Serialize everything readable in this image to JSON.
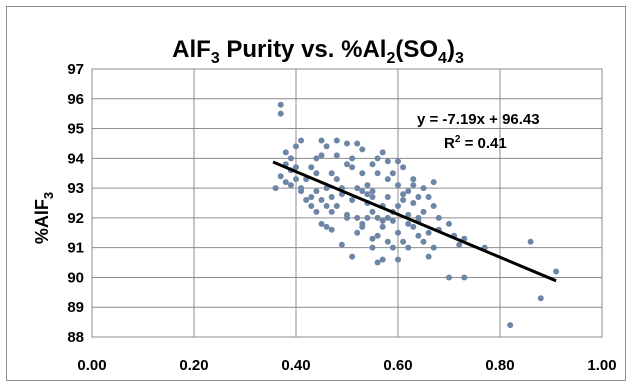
{
  "chart_data": {
    "type": "scatter",
    "title": {
      "parts": [
        {
          "text": "AlF",
          "shift": "none"
        },
        {
          "text": "3",
          "shift": "sub"
        },
        {
          "text": " Purity vs. %Al",
          "shift": "none"
        },
        {
          "text": "2",
          "shift": "sub"
        },
        {
          "text": "(SO",
          "shift": "none"
        },
        {
          "text": "4",
          "shift": "sub"
        },
        {
          "text": ")",
          "shift": "none"
        },
        {
          "text": "3",
          "shift": "sub"
        }
      ]
    },
    "ylabel": {
      "parts": [
        {
          "text": "%AlF",
          "shift": "none"
        },
        {
          "text": "3",
          "shift": "sub"
        }
      ]
    },
    "xlabel": "",
    "xlim": [
      0.0,
      1.0
    ],
    "ylim": [
      88,
      97
    ],
    "xticks": [
      "0.00",
      "0.20",
      "0.40",
      "0.60",
      "0.80",
      "1.00"
    ],
    "yticks": [
      "88",
      "89",
      "90",
      "91",
      "92",
      "93",
      "94",
      "95",
      "96",
      "97"
    ],
    "grid": "y-major",
    "marker_color": "#6e86a6",
    "trendline_color": "#000000",
    "trendline": {
      "slope": -7.19,
      "intercept": 96.43,
      "x_range": [
        0.355,
        0.91
      ],
      "equation": "y = -7.19x + 96.43",
      "r2_prefix": "R",
      "r2_sup": "2",
      "r2_rest": " = 0.41"
    },
    "points": [
      [
        0.37,
        95.8
      ],
      [
        0.37,
        95.5
      ],
      [
        0.36,
        93.0
      ],
      [
        0.37,
        93.4
      ],
      [
        0.38,
        93.8
      ],
      [
        0.38,
        94.2
      ],
      [
        0.38,
        93.2
      ],
      [
        0.39,
        94.0
      ],
      [
        0.39,
        93.6
      ],
      [
        0.39,
        93.1
      ],
      [
        0.4,
        94.4
      ],
      [
        0.4,
        93.7
      ],
      [
        0.4,
        93.3
      ],
      [
        0.41,
        94.6
      ],
      [
        0.41,
        92.9
      ],
      [
        0.41,
        93.0
      ],
      [
        0.42,
        92.6
      ],
      [
        0.42,
        93.3
      ],
      [
        0.43,
        93.7
      ],
      [
        0.43,
        92.7
      ],
      [
        0.43,
        92.4
      ],
      [
        0.44,
        94.0
      ],
      [
        0.44,
        92.2
      ],
      [
        0.44,
        93.5
      ],
      [
        0.45,
        94.6
      ],
      [
        0.45,
        94.1
      ],
      [
        0.45,
        92.6
      ],
      [
        0.45,
        91.8
      ],
      [
        0.46,
        94.4
      ],
      [
        0.46,
        93.0
      ],
      [
        0.46,
        92.4
      ],
      [
        0.46,
        91.7
      ],
      [
        0.47,
        92.7
      ],
      [
        0.47,
        93.5
      ],
      [
        0.47,
        91.6
      ],
      [
        0.48,
        94.6
      ],
      [
        0.48,
        94.1
      ],
      [
        0.48,
        93.3
      ],
      [
        0.48,
        92.4
      ],
      [
        0.49,
        93.0
      ],
      [
        0.49,
        92.8
      ],
      [
        0.49,
        91.1
      ],
      [
        0.5,
        94.5
      ],
      [
        0.5,
        92.1
      ],
      [
        0.5,
        93.8
      ],
      [
        0.51,
        94.0
      ],
      [
        0.51,
        93.7
      ],
      [
        0.51,
        92.6
      ],
      [
        0.51,
        90.7
      ],
      [
        0.52,
        94.5
      ],
      [
        0.52,
        93.0
      ],
      [
        0.52,
        92.0
      ],
      [
        0.52,
        91.5
      ],
      [
        0.53,
        94.3
      ],
      [
        0.53,
        93.5
      ],
      [
        0.53,
        91.8
      ],
      [
        0.53,
        92.9
      ],
      [
        0.54,
        92.8
      ],
      [
        0.54,
        92.5
      ],
      [
        0.54,
        93.1
      ],
      [
        0.55,
        93.8
      ],
      [
        0.55,
        91.3
      ],
      [
        0.55,
        92.2
      ],
      [
        0.55,
        91.0
      ],
      [
        0.55,
        92.7
      ],
      [
        0.56,
        94.0
      ],
      [
        0.56,
        93.5
      ],
      [
        0.56,
        92.0
      ],
      [
        0.56,
        91.4
      ],
      [
        0.56,
        90.5
      ],
      [
        0.57,
        94.2
      ],
      [
        0.57,
        92.4
      ],
      [
        0.57,
        90.6
      ],
      [
        0.57,
        91.7
      ],
      [
        0.58,
        93.3
      ],
      [
        0.58,
        92.7
      ],
      [
        0.58,
        91.2
      ],
      [
        0.58,
        93.9
      ],
      [
        0.59,
        92.2
      ],
      [
        0.59,
        91.0
      ],
      [
        0.59,
        93.5
      ],
      [
        0.6,
        93.9
      ],
      [
        0.6,
        93.1
      ],
      [
        0.6,
        92.4
      ],
      [
        0.6,
        91.5
      ],
      [
        0.6,
        90.6
      ],
      [
        0.61,
        92.8
      ],
      [
        0.61,
        91.2
      ],
      [
        0.61,
        93.7
      ],
      [
        0.62,
        91.8
      ],
      [
        0.62,
        92.9
      ],
      [
        0.62,
        91.0
      ],
      [
        0.63,
        93.3
      ],
      [
        0.63,
        92.5
      ],
      [
        0.63,
        91.7
      ],
      [
        0.63,
        93.1
      ],
      [
        0.64,
        92.7
      ],
      [
        0.64,
        91.4
      ],
      [
        0.64,
        92.0
      ],
      [
        0.65,
        93.0
      ],
      [
        0.65,
        92.2
      ],
      [
        0.65,
        91.2
      ],
      [
        0.66,
        92.7
      ],
      [
        0.66,
        91.5
      ],
      [
        0.66,
        90.7
      ],
      [
        0.67,
        93.2
      ],
      [
        0.67,
        92.4
      ],
      [
        0.67,
        91.0
      ],
      [
        0.68,
        92.0
      ],
      [
        0.68,
        91.6
      ],
      [
        0.7,
        91.8
      ],
      [
        0.7,
        90.0
      ],
      [
        0.71,
        91.4
      ],
      [
        0.72,
        91.1
      ],
      [
        0.73,
        91.3
      ],
      [
        0.73,
        90.0
      ],
      [
        0.77,
        91.0
      ],
      [
        0.82,
        88.4
      ],
      [
        0.86,
        91.2
      ],
      [
        0.88,
        89.3
      ],
      [
        0.91,
        90.2
      ],
      [
        0.5,
        92.0
      ],
      [
        0.54,
        92.0
      ],
      [
        0.58,
        92.0
      ],
      [
        0.62,
        92.1
      ],
      [
        0.44,
        92.9
      ],
      [
        0.47,
        92.2
      ],
      [
        0.53,
        91.7
      ],
      [
        0.57,
        91.9
      ],
      [
        0.61,
        92.6
      ],
      [
        0.64,
        91.9
      ],
      [
        0.59,
        91.9
      ],
      [
        0.55,
        92.9
      ]
    ]
  }
}
